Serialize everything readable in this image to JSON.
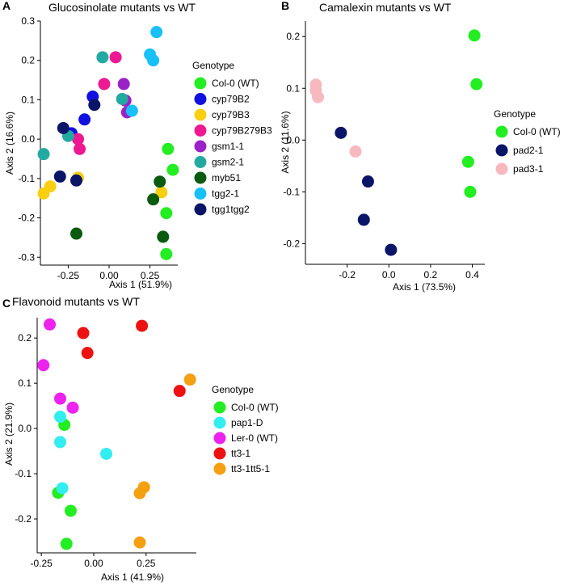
{
  "chart_data": [
    {
      "type": "scatter",
      "panel": "A",
      "title": "Glucosinolate mutants vs WT",
      "xlabel": "Axis 1 (51.9%)",
      "ylabel": "Axis 2 (16.6%)",
      "xlim": [
        -0.42,
        0.42
      ],
      "ylim": [
        -0.32,
        0.3
      ],
      "xticks": [
        -0.25,
        0.0,
        0.25
      ],
      "xtick_labels": [
        "-0.25",
        "0.00",
        "0.25"
      ],
      "yticks": [
        -0.3,
        -0.2,
        -0.1,
        0.0,
        0.1,
        0.2,
        0.3
      ],
      "ytick_labels": [
        "-0.3",
        "-0.2",
        "-0.1",
        "0.0",
        "0.1",
        "0.2",
        "0.3"
      ],
      "legend_title": "Genotype",
      "series": [
        {
          "name": "Col-0 (WT)",
          "color": "#22ee22",
          "points": [
            [
              0.36,
              -0.025
            ],
            [
              0.39,
              -0.078
            ],
            [
              0.35,
              -0.188
            ],
            [
              0.35,
              -0.292
            ]
          ]
        },
        {
          "name": "cyp79B2",
          "color": "#1010e0",
          "points": [
            [
              -0.1,
              0.108
            ],
            [
              -0.15,
              0.05
            ],
            [
              -0.23,
              0.015
            ]
          ]
        },
        {
          "name": "cyp79B3",
          "color": "#f8d010",
          "points": [
            [
              -0.4,
              -0.138
            ],
            [
              -0.36,
              -0.12
            ],
            [
              -0.19,
              -0.098
            ],
            [
              0.32,
              -0.135
            ]
          ]
        },
        {
          "name": "cyp79B279B3",
          "color": "#ee1893",
          "points": [
            [
              0.04,
              0.208
            ],
            [
              -0.03,
              0.14
            ],
            [
              -0.19,
              0.0
            ],
            [
              -0.18,
              -0.025
            ]
          ]
        },
        {
          "name": "gsm1-1",
          "color": "#9a22c8",
          "points": [
            [
              0.09,
              0.14
            ],
            [
              0.1,
              0.098
            ],
            [
              0.11,
              0.068
            ]
          ]
        },
        {
          "name": "gsm2-1",
          "color": "#22aaa2",
          "points": [
            [
              -0.04,
              0.208
            ],
            [
              0.08,
              0.102
            ],
            [
              -0.25,
              0.008
            ],
            [
              -0.4,
              -0.038
            ]
          ]
        },
        {
          "name": "myb51",
          "color": "#0a5a10",
          "points": [
            [
              0.31,
              -0.108
            ],
            [
              0.27,
              -0.153
            ],
            [
              0.33,
              -0.248
            ],
            [
              -0.2,
              -0.24
            ]
          ]
        },
        {
          "name": "tgg2-1",
          "color": "#18c0f8",
          "points": [
            [
              0.29,
              0.272
            ],
            [
              0.25,
              0.215
            ],
            [
              0.27,
              0.2
            ],
            [
              0.14,
              0.072
            ]
          ]
        },
        {
          "name": "tgg1tgg2",
          "color": "#0a1568",
          "points": [
            [
              -0.28,
              0.028
            ],
            [
              -0.09,
              0.087
            ],
            [
              -0.2,
              -0.105
            ],
            [
              -0.3,
              -0.095
            ]
          ]
        }
      ]
    },
    {
      "type": "scatter",
      "panel": "B",
      "title": "Camalexin mutants vs WT",
      "xlabel": "Axis 1 (73.5%)",
      "ylabel": "Axis 2 (11.6%)",
      "xlim": [
        -0.4,
        0.46
      ],
      "ylim": [
        -0.24,
        0.23
      ],
      "xticks": [
        -0.2,
        0.0,
        0.2,
        0.4
      ],
      "xtick_labels": [
        "-0.2",
        "0.0",
        "0.2",
        "0.4"
      ],
      "yticks": [
        -0.2,
        -0.1,
        0.0,
        0.1,
        0.2
      ],
      "ytick_labels": [
        "-0.2",
        "-0.1",
        "0.0",
        "0.1",
        "0.2"
      ],
      "legend_title": "Genotype",
      "series": [
        {
          "name": "Col-0 (WT)",
          "color": "#22ee22",
          "points": [
            [
              0.41,
              0.202
            ],
            [
              0.42,
              0.108
            ],
            [
              0.38,
              -0.042
            ],
            [
              0.39,
              -0.1
            ]
          ]
        },
        {
          "name": "pad2-1",
          "color": "#0a1568",
          "points": [
            [
              -0.23,
              0.014
            ],
            [
              -0.1,
              -0.08
            ],
            [
              -0.12,
              -0.154
            ],
            [
              0.01,
              -0.212
            ]
          ]
        },
        {
          "name": "pad3-1",
          "color": "#f8b8c0",
          "points": [
            [
              -0.35,
              0.107
            ],
            [
              -0.35,
              0.096
            ],
            [
              -0.34,
              0.083
            ],
            [
              -0.16,
              -0.022
            ]
          ]
        }
      ]
    },
    {
      "type": "scatter",
      "panel": "C",
      "title": "Flavonoid mutants vs WT",
      "xlabel": "Axis 1 (41.9%)",
      "ylabel": "Axis 2 (21.9%)",
      "xlim": [
        -0.27,
        0.49
      ],
      "ylim": [
        -0.275,
        0.245
      ],
      "xticks": [
        -0.25,
        0.0,
        0.25
      ],
      "xtick_labels": [
        "-0.25",
        "0.00",
        "0.25"
      ],
      "yticks": [
        -0.2,
        -0.1,
        0.0,
        0.1,
        0.2
      ],
      "ytick_labels": [
        "-0.2",
        "-0.1",
        "0.0",
        "0.1",
        "0.2"
      ],
      "legend_title": "Genotype",
      "series": [
        {
          "name": "Col-0 (WT)",
          "color": "#22ee22",
          "points": [
            [
              -0.14,
              0.008
            ],
            [
              -0.17,
              -0.142
            ],
            [
              -0.11,
              -0.182
            ],
            [
              -0.13,
              -0.255
            ]
          ]
        },
        {
          "name": "pap1-D",
          "color": "#33eef0",
          "points": [
            [
              -0.16,
              0.026
            ],
            [
              -0.16,
              -0.03
            ],
            [
              0.06,
              -0.056
            ],
            [
              -0.15,
              -0.132
            ]
          ]
        },
        {
          "name": "Ler-0 (WT)",
          "color": "#ee22ee",
          "points": [
            [
              -0.21,
              0.23
            ],
            [
              -0.24,
              0.14
            ],
            [
              -0.16,
              0.066
            ],
            [
              -0.1,
              0.046
            ]
          ]
        },
        {
          "name": "tt3-1",
          "color": "#ee1111",
          "points": [
            [
              -0.05,
              0.211
            ],
            [
              0.23,
              0.227
            ],
            [
              -0.03,
              0.167
            ],
            [
              0.41,
              0.083
            ]
          ]
        },
        {
          "name": "tt3-1tt5-1",
          "color": "#f5a011",
          "points": [
            [
              0.46,
              0.108
            ],
            [
              0.24,
              -0.13
            ],
            [
              0.22,
              -0.143
            ],
            [
              0.22,
              -0.252
            ]
          ]
        }
      ]
    }
  ]
}
